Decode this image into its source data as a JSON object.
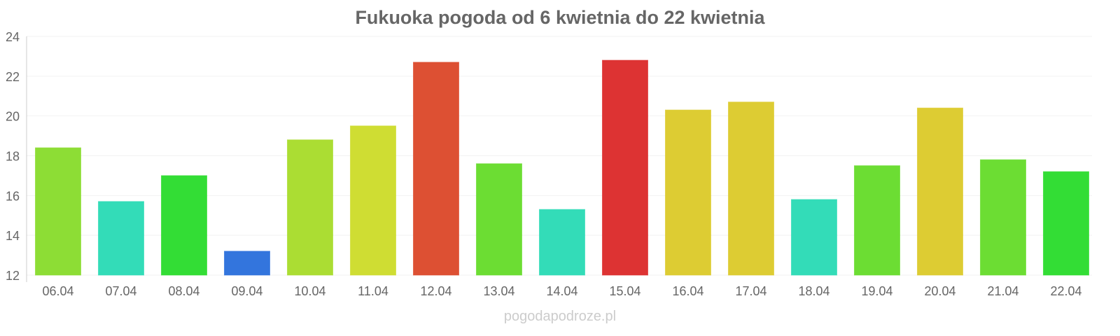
{
  "chart_data": {
    "type": "bar",
    "title": "Fukuoka pogoda od 6 kwietnia do 22 kwietnia",
    "xlabel": "",
    "ylabel": "",
    "ylim": [
      12,
      24
    ],
    "yticks": [
      12,
      14,
      16,
      18,
      20,
      22,
      24
    ],
    "grid": true,
    "legend": "none",
    "categories": [
      "06.04",
      "07.04",
      "08.04",
      "09.04",
      "10.04",
      "11.04",
      "12.04",
      "13.04",
      "14.04",
      "15.04",
      "16.04",
      "17.04",
      "18.04",
      "19.04",
      "20.04",
      "21.04",
      "22.04"
    ],
    "values": [
      18.4,
      15.7,
      17.0,
      13.2,
      18.8,
      19.5,
      22.7,
      17.6,
      15.3,
      22.8,
      20.3,
      20.7,
      15.8,
      17.5,
      20.4,
      17.8,
      17.2
    ],
    "colors": [
      "#8ddd35",
      "#33dcb8",
      "#33dd35",
      "#3375dd",
      "#abdd33",
      "#cfdd33",
      "#dd5033",
      "#6cdd33",
      "#33dcb8",
      "#dd3333",
      "#ddcc33",
      "#ddcc33",
      "#33dcb8",
      "#6cdd33",
      "#ddcc33",
      "#6cdd33",
      "#33dd35"
    ]
  },
  "credit": "pogodapodroze.pl"
}
